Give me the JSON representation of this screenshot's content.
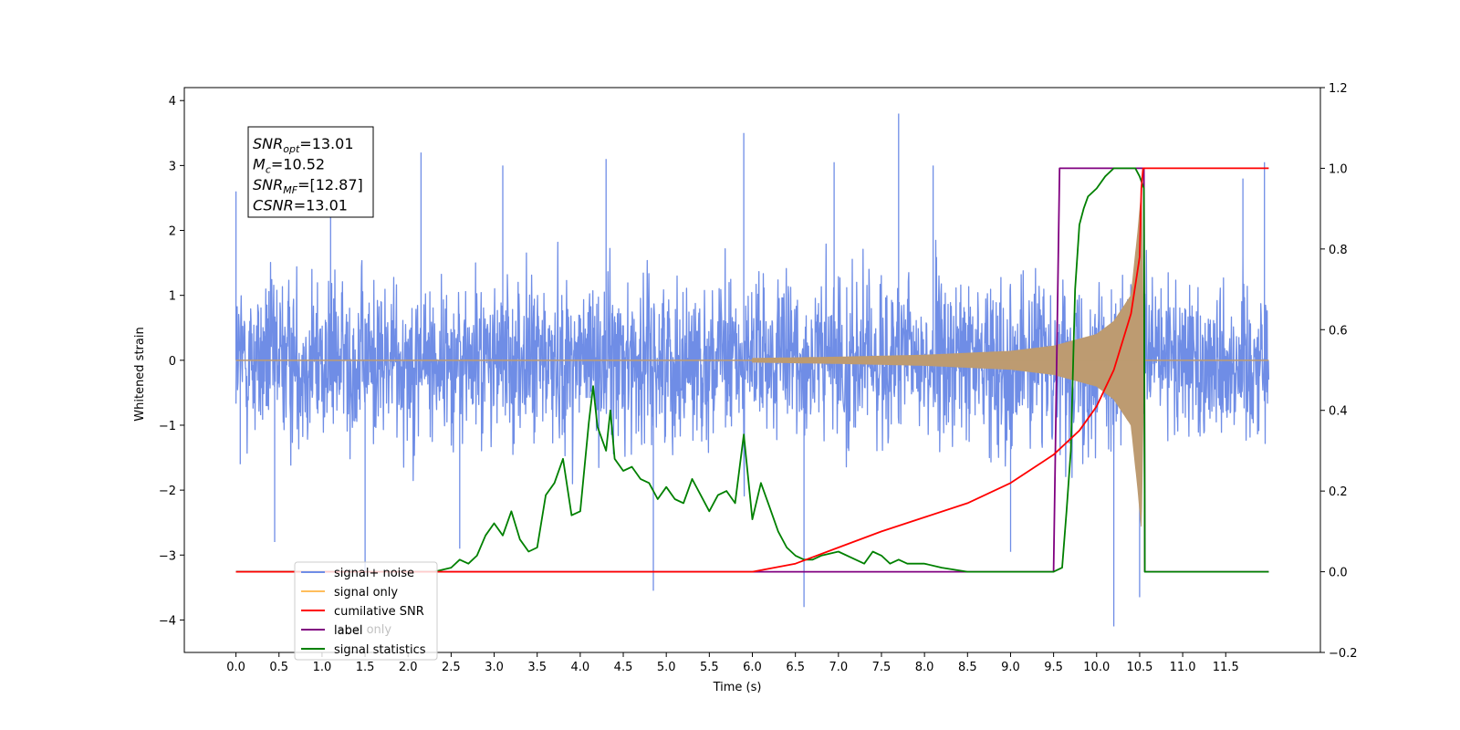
{
  "chart_data": {
    "type": "line",
    "xlabel": "Time (s)",
    "ylabel": "Whitened strain",
    "xlim": [
      -0.6,
      12.6
    ],
    "ylim": [
      -4.5,
      4.2
    ],
    "y2lim": [
      -0.2,
      1.2
    ],
    "x_ticks": [
      "0.0",
      "0.5",
      "1.0",
      "1.5",
      "2.0",
      "2.5",
      "3.0",
      "3.5",
      "4.0",
      "4.5",
      "5.0",
      "5.5",
      "6.0",
      "6.5",
      "7.0",
      "7.5",
      "8.0",
      "8.5",
      "9.0",
      "9.5",
      "10.0",
      "10.5",
      "11.0",
      "11.5"
    ],
    "y_ticks": [
      "−4",
      "−3",
      "−2",
      "−1",
      "0",
      "1",
      "2",
      "3",
      "4"
    ],
    "y2_ticks": [
      "−0.2",
      "0.0",
      "0.2",
      "0.4",
      "0.6",
      "0.8",
      "1.0",
      "1.2"
    ],
    "annotation": {
      "snr_opt": {
        "sym": "SNR",
        "sub": "opt",
        "text": "=13.01"
      },
      "mc": {
        "sym": "M",
        "sub": "c",
        "text": "=10.52"
      },
      "snr_mf": {
        "sym": "SNR",
        "sub": "MF",
        "text": "=[12.87]"
      },
      "csnr": {
        "sym": "CSNR",
        "sub": "",
        "text": "=13.01"
      }
    },
    "legend": {
      "placement": "lower-left",
      "entries": [
        "signal+ noise",
        "signal only",
        "cumilative SNR",
        "label",
        "signal statistics"
      ],
      "overlapping_text": "label only"
    },
    "series": [
      {
        "name": "signal+ noise",
        "axis": "left",
        "color": "#6f8de6",
        "kind": "noise",
        "x_range": [
          0.0,
          12.0
        ],
        "typical_peak": 2.3,
        "outliers": [
          {
            "x": 0.0,
            "y": 2.6
          },
          {
            "x": 0.05,
            "y": -1.6
          },
          {
            "x": 1.5,
            "y": -3.3
          },
          {
            "x": 2.15,
            "y": 3.2
          },
          {
            "x": 4.85,
            "y": -3.55
          },
          {
            "x": 5.9,
            "y": 3.5
          },
          {
            "x": 6.6,
            "y": -3.8
          },
          {
            "x": 7.7,
            "y": 3.8
          },
          {
            "x": 10.2,
            "y": -4.1
          },
          {
            "x": 10.5,
            "y": -3.65
          },
          {
            "x": 11.95,
            "y": 3.05
          },
          {
            "x": 0.45,
            "y": -2.8
          },
          {
            "x": 2.6,
            "y": -2.9
          },
          {
            "x": 4.3,
            "y": 3.1
          },
          {
            "x": 3.1,
            "y": 3.0
          },
          {
            "x": 9.0,
            "y": -2.95
          },
          {
            "x": 8.1,
            "y": 3.0
          },
          {
            "x": 6.95,
            "y": 3.05
          },
          {
            "x": 11.7,
            "y": 2.8
          },
          {
            "x": 1.1,
            "y": 3.0
          }
        ]
      },
      {
        "name": "signal only",
        "axis": "left",
        "color": "#ffbe5c",
        "fill_color": "#bd9b71",
        "kind": "chirp",
        "envelope": [
          [
            0.0,
            0.02
          ],
          [
            6.0,
            0.03
          ],
          [
            7.0,
            0.05
          ],
          [
            8.0,
            0.08
          ],
          [
            9.0,
            0.14
          ],
          [
            9.5,
            0.22
          ],
          [
            10.0,
            0.4
          ],
          [
            10.2,
            0.6
          ],
          [
            10.4,
            1.0
          ],
          [
            10.48,
            2.0
          ],
          [
            10.52,
            2.6
          ],
          [
            10.55,
            0.05
          ],
          [
            12.0,
            0.02
          ]
        ]
      },
      {
        "name": "cumilative SNR",
        "axis": "right",
        "color": "#ff0000",
        "x": [
          6.0,
          6.5,
          7.0,
          7.5,
          8.0,
          8.5,
          9.0,
          9.5,
          9.8,
          10.0,
          10.2,
          10.4,
          10.5,
          10.52,
          10.54,
          12.0
        ],
        "values": [
          0.0,
          0.02,
          0.06,
          0.1,
          0.135,
          0.17,
          0.22,
          0.29,
          0.35,
          0.41,
          0.5,
          0.64,
          0.78,
          0.95,
          1.0,
          1.0
        ]
      },
      {
        "name": "label",
        "axis": "right",
        "color": "#800080",
        "x": [
          0.0,
          9.5,
          9.57,
          10.55,
          10.56,
          12.0
        ],
        "values": [
          0.0,
          0.0,
          1.0,
          1.0,
          0.0,
          0.0
        ]
      },
      {
        "name": "signal statistics",
        "axis": "right",
        "color": "#008000",
        "x": [
          0.0,
          2.3,
          2.5,
          2.6,
          2.7,
          2.8,
          2.9,
          3.0,
          3.1,
          3.2,
          3.3,
          3.4,
          3.5,
          3.6,
          3.7,
          3.8,
          3.9,
          4.0,
          4.1,
          4.15,
          4.2,
          4.3,
          4.35,
          4.4,
          4.5,
          4.6,
          4.7,
          4.8,
          4.9,
          5.0,
          5.1,
          5.2,
          5.3,
          5.4,
          5.5,
          5.6,
          5.7,
          5.8,
          5.9,
          6.0,
          6.1,
          6.2,
          6.3,
          6.4,
          6.5,
          6.6,
          6.7,
          6.8,
          7.0,
          7.2,
          7.3,
          7.4,
          7.5,
          7.6,
          7.7,
          7.8,
          8.0,
          8.2,
          8.5,
          9.0,
          9.5,
          9.6,
          9.65,
          9.7,
          9.75,
          9.8,
          9.85,
          9.9,
          10.0,
          10.1,
          10.2,
          10.3,
          10.4,
          10.45,
          10.5,
          10.55,
          10.56,
          12.0
        ],
        "values": [
          0.0,
          0.0,
          0.01,
          0.03,
          0.02,
          0.04,
          0.09,
          0.12,
          0.09,
          0.15,
          0.08,
          0.05,
          0.06,
          0.19,
          0.22,
          0.28,
          0.14,
          0.15,
          0.37,
          0.46,
          0.36,
          0.3,
          0.4,
          0.28,
          0.25,
          0.26,
          0.23,
          0.22,
          0.18,
          0.21,
          0.18,
          0.17,
          0.23,
          0.19,
          0.15,
          0.19,
          0.2,
          0.17,
          0.34,
          0.13,
          0.22,
          0.16,
          0.1,
          0.06,
          0.04,
          0.03,
          0.03,
          0.04,
          0.05,
          0.03,
          0.02,
          0.05,
          0.04,
          0.02,
          0.03,
          0.02,
          0.02,
          0.01,
          0.0,
          0.0,
          0.0,
          0.01,
          0.15,
          0.3,
          0.7,
          0.86,
          0.9,
          0.93,
          0.95,
          0.98,
          1.0,
          1.0,
          1.0,
          1.0,
          0.98,
          0.95,
          0.0,
          0.0
        ]
      }
    ]
  }
}
